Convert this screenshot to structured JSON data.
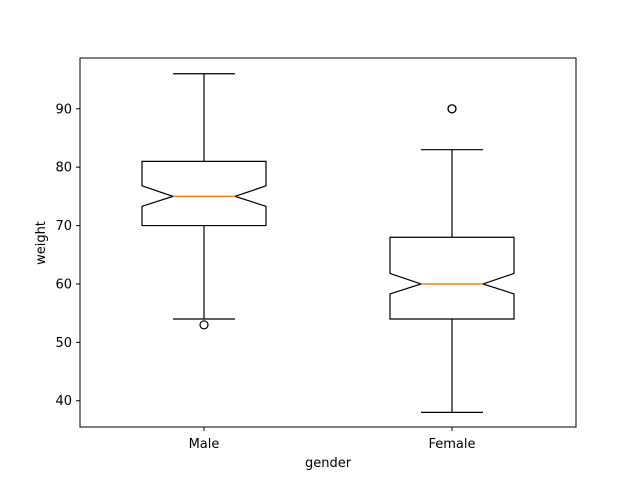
{
  "chart_data": {
    "type": "boxplot",
    "notched": true,
    "title": "",
    "xlabel": "gender",
    "ylabel": "weight",
    "ylim": [
      35.5,
      98.7
    ],
    "yticks": [
      40,
      50,
      60,
      70,
      80,
      90
    ],
    "categories": [
      "Male",
      "Female"
    ],
    "boxes": [
      {
        "category": "Male",
        "whisker_low": 54,
        "q1": 70,
        "median": 75,
        "q3": 81,
        "whisker_high": 96,
        "notch_low": 73.3,
        "notch_high": 76.8,
        "outliers": [
          53
        ]
      },
      {
        "category": "Female",
        "whisker_low": 38,
        "q1": 54,
        "median": 60,
        "q3": 68,
        "whisker_high": 83,
        "notch_low": 58.3,
        "notch_high": 61.8,
        "outliers": [
          90,
          90
        ]
      }
    ],
    "colors": {
      "box": "#000000",
      "median": "#ff7f0e"
    },
    "grid": false,
    "legend": "none"
  }
}
